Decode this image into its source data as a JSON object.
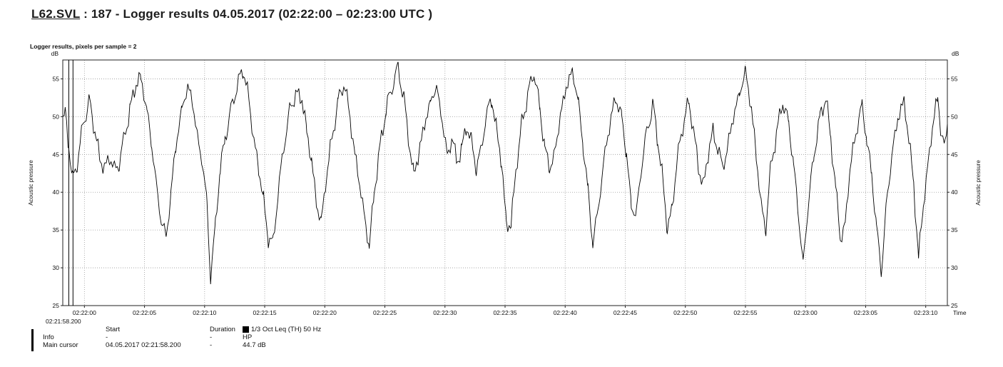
{
  "window": {
    "title_file": "L62.SVL",
    "title_rest": " : 187 - Logger results 04.05.2017 (02:22:00 – 02:23:00 UTC )"
  },
  "info_table": {
    "header": {
      "c2": "Start",
      "c3": "Duration"
    },
    "legend": {
      "swatch_color": "#000000",
      "label": "1/3 Oct Leq (TH) 50 Hz"
    },
    "rows": [
      {
        "c1": "Info",
        "c2": "-",
        "c3": "-",
        "c4": "HP"
      },
      {
        "c1": "Main cursor",
        "c2": "04.05.2017 02:21:58.200",
        "c3": "-",
        "c4": "44.7 dB"
      }
    ]
  },
  "chart_data": {
    "type": "line",
    "plot_label": "Logger results, pixels per sample = 2",
    "y_unit": "dB",
    "y_axis_label_left": "Acoustic pressure",
    "y_axis_label_right": "Acoustic pressure",
    "x_axis_label": "Time",
    "x_start_label": "02:21:58.200",
    "ylim": [
      25,
      57.5
    ],
    "y_ticks": [
      25,
      30,
      35,
      40,
      45,
      50,
      55
    ],
    "xlim": [
      0,
      73.6
    ],
    "x_ticks": [
      {
        "t": 1.8,
        "label": "02:22:00"
      },
      {
        "t": 6.8,
        "label": "02:22:05"
      },
      {
        "t": 11.8,
        "label": "02:22:10"
      },
      {
        "t": 16.8,
        "label": "02:22:15"
      },
      {
        "t": 21.8,
        "label": "02:22:20"
      },
      {
        "t": 26.8,
        "label": "02:22:25"
      },
      {
        "t": 31.8,
        "label": "02:22:30"
      },
      {
        "t": 36.8,
        "label": "02:22:35"
      },
      {
        "t": 41.8,
        "label": "02:22:40"
      },
      {
        "t": 46.8,
        "label": "02:22:45"
      },
      {
        "t": 51.8,
        "label": "02:22:50"
      },
      {
        "t": 56.8,
        "label": "02:22:55"
      },
      {
        "t": 61.8,
        "label": "02:23:00"
      },
      {
        "t": 66.8,
        "label": "02:23:05"
      },
      {
        "t": 71.8,
        "label": "02:23:10"
      }
    ],
    "grid": true,
    "colors": {
      "line": "#000000",
      "grid": "#9a9a9a",
      "frame": "#222222",
      "cursor": "#000000"
    },
    "cursor_lines": [
      0.5,
      0.85
    ],
    "legend_position": "bottom",
    "series": [
      {
        "name": "1/3 Oct Leq (TH) 50 Hz",
        "points": [
          [
            0.0,
            49.5
          ],
          [
            0.2,
            50.5
          ],
          [
            0.5,
            46
          ],
          [
            0.8,
            41.5
          ],
          [
            1.2,
            44
          ],
          [
            1.7,
            49
          ],
          [
            2.2,
            52
          ],
          [
            2.7,
            48
          ],
          [
            3.1,
            44
          ],
          [
            3.5,
            43.5
          ],
          [
            3.9,
            44.5
          ],
          [
            4.3,
            43
          ],
          [
            4.7,
            44
          ],
          [
            5.1,
            47
          ],
          [
            5.6,
            51
          ],
          [
            6.1,
            54.5
          ],
          [
            6.5,
            55
          ],
          [
            7.0,
            51
          ],
          [
            7.4,
            46
          ],
          [
            7.8,
            41
          ],
          [
            8.2,
            36
          ],
          [
            8.6,
            34
          ],
          [
            9.0,
            40
          ],
          [
            9.4,
            46
          ],
          [
            9.9,
            51
          ],
          [
            10.4,
            54
          ],
          [
            10.8,
            52
          ],
          [
            11.2,
            47
          ],
          [
            11.6,
            44.5
          ],
          [
            12.0,
            38
          ],
          [
            12.3,
            28.5
          ],
          [
            12.7,
            36
          ],
          [
            13.1,
            43
          ],
          [
            13.5,
            47
          ],
          [
            14.0,
            51
          ],
          [
            14.5,
            54
          ],
          [
            15.0,
            56.5
          ],
          [
            15.5,
            52
          ],
          [
            15.9,
            47
          ],
          [
            16.3,
            43
          ],
          [
            16.7,
            39
          ],
          [
            17.1,
            34
          ],
          [
            17.5,
            33
          ],
          [
            17.9,
            40
          ],
          [
            18.4,
            46
          ],
          [
            18.9,
            51
          ],
          [
            19.4,
            53
          ],
          [
            19.9,
            52.5
          ],
          [
            20.3,
            48
          ],
          [
            20.7,
            44
          ],
          [
            21.1,
            39
          ],
          [
            21.5,
            35.5
          ],
          [
            21.9,
            42
          ],
          [
            22.4,
            47
          ],
          [
            22.9,
            52
          ],
          [
            23.4,
            54.5
          ],
          [
            23.9,
            50
          ],
          [
            24.3,
            45
          ],
          [
            24.7,
            41
          ],
          [
            25.1,
            37
          ],
          [
            25.5,
            32.5
          ],
          [
            25.9,
            40
          ],
          [
            26.4,
            46
          ],
          [
            26.9,
            51
          ],
          [
            27.4,
            54
          ],
          [
            27.9,
            56.5
          ],
          [
            28.4,
            52
          ],
          [
            28.8,
            47
          ],
          [
            29.2,
            42
          ],
          [
            29.6,
            45
          ],
          [
            30.1,
            49
          ],
          [
            30.6,
            52
          ],
          [
            31.1,
            54
          ],
          [
            31.6,
            49
          ],
          [
            32.0,
            45
          ],
          [
            32.4,
            47
          ],
          [
            32.8,
            44
          ],
          [
            33.2,
            46
          ],
          [
            33.6,
            48.5
          ],
          [
            34.0,
            47
          ],
          [
            34.4,
            43
          ],
          [
            34.8,
            45.5
          ],
          [
            35.2,
            50
          ],
          [
            35.7,
            52.5
          ],
          [
            36.1,
            48
          ],
          [
            36.5,
            44
          ],
          [
            36.9,
            36
          ],
          [
            37.3,
            35.5
          ],
          [
            37.7,
            43
          ],
          [
            38.2,
            49
          ],
          [
            38.7,
            53
          ],
          [
            39.2,
            56
          ],
          [
            39.7,
            51
          ],
          [
            40.1,
            46
          ],
          [
            40.5,
            43
          ],
          [
            40.9,
            45
          ],
          [
            41.4,
            50
          ],
          [
            41.9,
            54
          ],
          [
            42.4,
            56
          ],
          [
            42.9,
            52
          ],
          [
            43.3,
            46
          ],
          [
            43.7,
            40
          ],
          [
            44.1,
            33.5
          ],
          [
            44.5,
            37
          ],
          [
            45.0,
            44
          ],
          [
            45.5,
            49
          ],
          [
            46.0,
            52.5
          ],
          [
            46.5,
            50
          ],
          [
            46.9,
            45
          ],
          [
            47.3,
            38.5
          ],
          [
            47.7,
            36.5
          ],
          [
            48.1,
            43
          ],
          [
            48.6,
            48
          ],
          [
            49.1,
            51.5
          ],
          [
            49.5,
            47
          ],
          [
            49.9,
            42
          ],
          [
            50.3,
            35
          ],
          [
            50.7,
            38
          ],
          [
            51.1,
            44
          ],
          [
            51.6,
            49
          ],
          [
            52.1,
            52
          ],
          [
            52.5,
            48
          ],
          [
            52.9,
            43
          ],
          [
            53.3,
            41
          ],
          [
            53.7,
            45
          ],
          [
            54.1,
            48
          ],
          [
            54.5,
            46
          ],
          [
            54.9,
            43
          ],
          [
            55.3,
            46
          ],
          [
            55.8,
            50
          ],
          [
            56.3,
            53
          ],
          [
            56.8,
            56
          ],
          [
            57.3,
            51
          ],
          [
            57.7,
            45
          ],
          [
            58.1,
            38
          ],
          [
            58.5,
            35.5
          ],
          [
            58.9,
            43
          ],
          [
            59.4,
            48
          ],
          [
            59.9,
            52
          ],
          [
            60.4,
            49
          ],
          [
            60.8,
            44
          ],
          [
            61.2,
            37
          ],
          [
            61.6,
            30.5
          ],
          [
            62.0,
            38
          ],
          [
            62.5,
            45
          ],
          [
            63.0,
            50
          ],
          [
            63.5,
            52.5
          ],
          [
            63.9,
            47
          ],
          [
            64.3,
            41
          ],
          [
            64.7,
            33.5
          ],
          [
            65.1,
            36
          ],
          [
            65.5,
            43
          ],
          [
            66.0,
            48
          ],
          [
            66.5,
            51.5
          ],
          [
            66.9,
            47
          ],
          [
            67.3,
            42
          ],
          [
            67.7,
            36
          ],
          [
            68.1,
            29
          ],
          [
            68.5,
            38
          ],
          [
            69.0,
            45
          ],
          [
            69.5,
            50
          ],
          [
            70.0,
            52
          ],
          [
            70.4,
            47
          ],
          [
            70.8,
            41
          ],
          [
            71.2,
            31.5
          ],
          [
            71.6,
            38
          ],
          [
            72.0,
            44
          ],
          [
            72.4,
            49
          ],
          [
            72.8,
            52.5
          ],
          [
            73.1,
            48
          ],
          [
            73.4,
            46
          ],
          [
            73.6,
            49
          ]
        ]
      }
    ],
    "render": {
      "step": 0.12,
      "jitter": [
        [
          0.7,
          9.1,
          0.0
        ],
        [
          0.45,
          23.7,
          1.3
        ],
        [
          0.3,
          41.0,
          0.5
        ]
      ]
    }
  }
}
